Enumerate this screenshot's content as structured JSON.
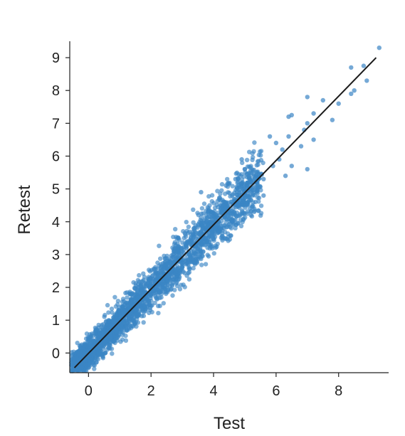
{
  "chart_data": {
    "type": "scatter",
    "title": "",
    "xlabel": "Test",
    "ylabel": "Retest",
    "xlim": [
      -0.6,
      9.6
    ],
    "ylim": [
      -0.6,
      9.5
    ],
    "x_ticks": [
      0,
      2,
      4,
      6,
      8
    ],
    "y_ticks": [
      0,
      1,
      2,
      3,
      4,
      5,
      6,
      7,
      8,
      9
    ],
    "grid": false,
    "legend": "none",
    "point_color": "#3a85c4",
    "line_color": "#1a1a1a",
    "reference_line": {
      "from": [
        -0.45,
        -0.45
      ],
      "to": [
        9.2,
        9.0
      ]
    },
    "points": [
      [
        9.3,
        9.3
      ],
      [
        8.8,
        8.75
      ],
      [
        8.4,
        8.7
      ],
      [
        8.9,
        8.3
      ],
      [
        8.5,
        8.0
      ],
      [
        8.4,
        7.9
      ],
      [
        7.0,
        7.8
      ],
      [
        7.5,
        7.7
      ],
      [
        8.0,
        7.6
      ],
      [
        7.2,
        7.3
      ],
      [
        7.8,
        7.1
      ],
      [
        7.0,
        7.0
      ],
      [
        6.4,
        7.2
      ],
      [
        6.5,
        7.25
      ],
      [
        6.9,
        6.8
      ],
      [
        7.2,
        6.5
      ],
      [
        6.4,
        6.6
      ],
      [
        6.8,
        6.3
      ],
      [
        5.8,
        6.6
      ],
      [
        6.2,
        6.2
      ],
      [
        6.0,
        6.4
      ],
      [
        7.0,
        5.6
      ],
      [
        6.5,
        5.7
      ],
      [
        6.1,
        5.9
      ],
      [
        6.3,
        5.4
      ],
      [
        5.0,
        5.6
      ],
      [
        4.9,
        5.9
      ],
      [
        5.2,
        5.2
      ],
      [
        5.6,
        5.3
      ],
      [
        5.9,
        5.7
      ],
      [
        5.4,
        5.0
      ],
      [
        4.7,
        5.3
      ],
      [
        4.4,
        5.1
      ],
      [
        5.2,
        4.2
      ],
      [
        4.8,
        4.5
      ],
      [
        3.6,
        4.9
      ],
      [
        4.2,
        3.8
      ],
      [
        4.6,
        4.0
      ],
      [
        5.6,
        4.8
      ]
    ]
  }
}
